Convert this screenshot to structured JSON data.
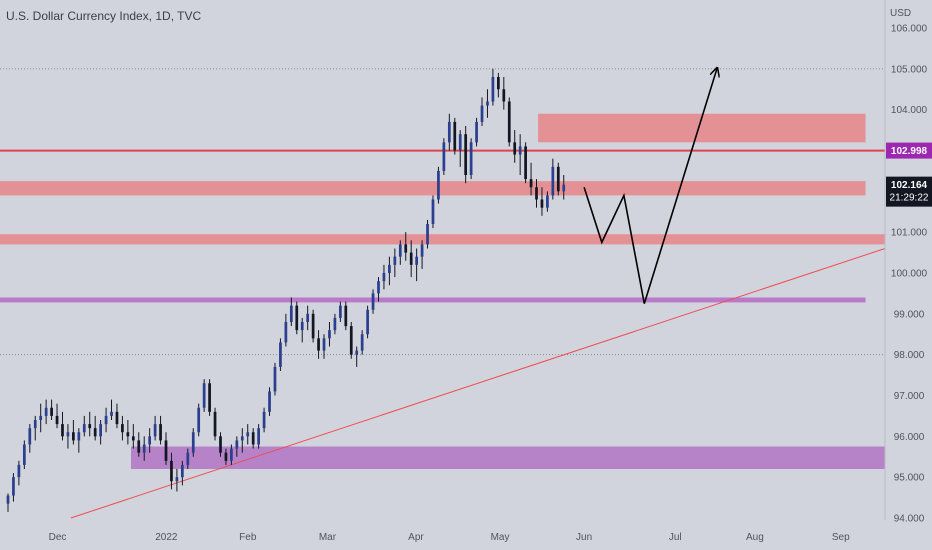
{
  "chart_data": {
    "type": "candlestick",
    "title": "U.S. Dollar Currency Index, 1D, TVC",
    "currency": "USD",
    "ylim": [
      94.0,
      106.0
    ],
    "y_ticks": [
      "94.000",
      "95.000",
      "96.000",
      "97.000",
      "98.000",
      "99.000",
      "100.000",
      "101.000",
      "102.000",
      "103.000",
      "104.000",
      "105.000",
      "106.000"
    ],
    "x_labels": [
      {
        "label": "Dec",
        "t": 0.065
      },
      {
        "label": "2022",
        "t": 0.188
      },
      {
        "label": "Feb",
        "t": 0.28
      },
      {
        "label": "Mar",
        "t": 0.37
      },
      {
        "label": "Apr",
        "t": 0.47
      },
      {
        "label": "May",
        "t": 0.565
      },
      {
        "label": "Jun",
        "t": 0.66
      },
      {
        "label": "Jul",
        "t": 0.763
      },
      {
        "label": "Aug",
        "t": 0.853
      },
      {
        "label": "Sep",
        "t": 0.95
      }
    ],
    "last_price": {
      "value": "102.164",
      "countdown": "21:29:22",
      "price": 102.164
    },
    "line_price": {
      "value": "102.998",
      "price": 102.998
    },
    "zones": [
      {
        "name": "zone-104",
        "low": 103.2,
        "high": 103.9,
        "t0": 0.608,
        "t1": 0.978,
        "color": "#e58a8e"
      },
      {
        "name": "zone-102",
        "low": 101.9,
        "high": 102.25,
        "t0": 0.0,
        "t1": 0.978,
        "color": "#e58a8e"
      },
      {
        "name": "zone-101",
        "low": 100.7,
        "high": 100.95,
        "t0": 0.0,
        "t1": 1.0,
        "color": "#e58a8e"
      },
      {
        "name": "zone-9935",
        "low": 99.28,
        "high": 99.4,
        "t0": 0.0,
        "t1": 0.978,
        "color": "#b76fc6"
      },
      {
        "name": "zone-955",
        "low": 95.2,
        "high": 95.75,
        "t0": 0.148,
        "t1": 1.0,
        "color": "#b27ac7"
      }
    ],
    "dotted_levels": [
      105.0,
      98.0
    ],
    "trendline": {
      "t0": 0.08,
      "p0": 94.0,
      "t1": 1.0,
      "p1": 100.6,
      "color": "#ef4c52"
    },
    "projection": [
      {
        "t": 0.66,
        "p": 102.1
      },
      {
        "t": 0.68,
        "p": 100.75
      },
      {
        "t": 0.705,
        "p": 101.9
      },
      {
        "t": 0.728,
        "p": 99.25
      },
      {
        "t": 0.81,
        "p": 105.0
      }
    ],
    "candles": [
      [
        94.35,
        94.6,
        94.15,
        94.55
      ],
      [
        94.55,
        95.1,
        94.4,
        95.0
      ],
      [
        95.0,
        95.4,
        94.8,
        95.3
      ],
      [
        95.3,
        95.9,
        95.2,
        95.8
      ],
      [
        95.8,
        96.3,
        95.6,
        96.2
      ],
      [
        96.2,
        96.5,
        95.9,
        96.4
      ],
      [
        96.4,
        96.8,
        96.1,
        96.5
      ],
      [
        96.5,
        96.9,
        96.3,
        96.7
      ],
      [
        96.7,
        96.9,
        96.4,
        96.5
      ],
      [
        96.5,
        96.8,
        96.2,
        96.3
      ],
      [
        96.3,
        96.6,
        95.9,
        96.0
      ],
      [
        96.0,
        96.3,
        95.7,
        96.1
      ],
      [
        96.1,
        96.4,
        95.8,
        95.9
      ],
      [
        95.9,
        96.2,
        95.6,
        96.1
      ],
      [
        96.1,
        96.5,
        96.0,
        96.3
      ],
      [
        96.3,
        96.6,
        96.0,
        96.2
      ],
      [
        96.2,
        96.5,
        95.9,
        96.0
      ],
      [
        96.0,
        96.4,
        95.8,
        96.3
      ],
      [
        96.3,
        96.7,
        96.1,
        96.5
      ],
      [
        96.5,
        96.9,
        96.4,
        96.6
      ],
      [
        96.6,
        96.8,
        96.2,
        96.3
      ],
      [
        96.3,
        96.5,
        95.9,
        96.1
      ],
      [
        96.1,
        96.4,
        95.8,
        96.0
      ],
      [
        96.0,
        96.3,
        95.7,
        95.9
      ],
      [
        95.9,
        96.1,
        95.5,
        95.6
      ],
      [
        95.6,
        96.0,
        95.4,
        95.8
      ],
      [
        95.8,
        96.2,
        95.6,
        96.0
      ],
      [
        96.0,
        96.5,
        95.9,
        96.3
      ],
      [
        96.3,
        96.5,
        95.8,
        95.9
      ],
      [
        95.9,
        96.1,
        95.3,
        95.4
      ],
      [
        95.4,
        95.6,
        94.7,
        94.9
      ],
      [
        94.9,
        95.2,
        94.65,
        95.0
      ],
      [
        95.0,
        95.4,
        94.8,
        95.3
      ],
      [
        95.3,
        95.7,
        95.2,
        95.6
      ],
      [
        95.6,
        96.2,
        95.5,
        96.1
      ],
      [
        96.1,
        96.8,
        96.0,
        96.7
      ],
      [
        96.7,
        97.4,
        96.6,
        97.3
      ],
      [
        97.3,
        97.4,
        96.5,
        96.6
      ],
      [
        96.6,
        96.7,
        95.9,
        96.0
      ],
      [
        96.0,
        96.1,
        95.5,
        95.6
      ],
      [
        95.6,
        95.7,
        95.3,
        95.4
      ],
      [
        95.4,
        95.8,
        95.3,
        95.7
      ],
      [
        95.7,
        96.0,
        95.5,
        95.9
      ],
      [
        95.9,
        96.2,
        95.6,
        96.0
      ],
      [
        96.0,
        96.3,
        95.8,
        96.1
      ],
      [
        96.1,
        96.2,
        95.7,
        95.8
      ],
      [
        95.8,
        96.3,
        95.7,
        96.2
      ],
      [
        96.2,
        96.7,
        96.1,
        96.6
      ],
      [
        96.6,
        97.2,
        96.5,
        97.1
      ],
      [
        97.1,
        97.8,
        97.0,
        97.7
      ],
      [
        97.7,
        98.4,
        97.6,
        98.3
      ],
      [
        98.3,
        99.0,
        98.2,
        98.8
      ],
      [
        98.8,
        99.4,
        98.7,
        99.2
      ],
      [
        99.2,
        99.3,
        98.5,
        98.6
      ],
      [
        98.6,
        98.9,
        98.3,
        98.8
      ],
      [
        98.8,
        99.2,
        98.6,
        99.0
      ],
      [
        99.0,
        99.1,
        98.3,
        98.4
      ],
      [
        98.4,
        98.6,
        97.9,
        98.1
      ],
      [
        98.1,
        98.5,
        97.9,
        98.4
      ],
      [
        98.4,
        98.8,
        98.2,
        98.6
      ],
      [
        98.6,
        99.0,
        98.5,
        98.9
      ],
      [
        98.9,
        99.3,
        98.8,
        99.2
      ],
      [
        99.2,
        99.3,
        98.6,
        98.7
      ],
      [
        98.7,
        98.8,
        97.9,
        98.0
      ],
      [
        98.0,
        98.2,
        97.7,
        98.1
      ],
      [
        98.1,
        98.6,
        98.0,
        98.5
      ],
      [
        98.5,
        99.2,
        98.4,
        99.1
      ],
      [
        99.1,
        99.6,
        99.0,
        99.5
      ],
      [
        99.5,
        99.9,
        99.3,
        99.8
      ],
      [
        99.8,
        100.2,
        99.6,
        100.0
      ],
      [
        100.0,
        100.4,
        99.7,
        100.2
      ],
      [
        100.2,
        100.6,
        99.9,
        100.4
      ],
      [
        100.4,
        100.8,
        100.2,
        100.7
      ],
      [
        100.7,
        101.0,
        100.3,
        100.5
      ],
      [
        100.5,
        100.8,
        99.9,
        100.2
      ],
      [
        100.2,
        100.6,
        99.8,
        100.4
      ],
      [
        100.4,
        100.8,
        100.1,
        100.7
      ],
      [
        100.7,
        101.3,
        100.6,
        101.2
      ],
      [
        101.2,
        101.9,
        101.1,
        101.8
      ],
      [
        101.8,
        102.6,
        101.7,
        102.5
      ],
      [
        102.5,
        103.3,
        102.4,
        103.2
      ],
      [
        103.2,
        103.9,
        103.0,
        103.7
      ],
      [
        103.7,
        103.8,
        102.9,
        103.0
      ],
      [
        103.0,
        103.5,
        102.6,
        103.4
      ],
      [
        103.4,
        103.6,
        102.2,
        102.4
      ],
      [
        102.4,
        103.3,
        102.3,
        103.2
      ],
      [
        103.2,
        103.8,
        103.1,
        103.7
      ],
      [
        103.7,
        104.3,
        103.6,
        104.1
      ],
      [
        104.1,
        104.5,
        103.8,
        104.2
      ],
      [
        104.2,
        105.0,
        104.1,
        104.8
      ],
      [
        104.8,
        104.9,
        104.3,
        104.5
      ],
      [
        104.5,
        104.8,
        104.0,
        104.2
      ],
      [
        104.2,
        104.3,
        103.1,
        103.2
      ],
      [
        103.2,
        103.5,
        102.7,
        102.9
      ],
      [
        102.9,
        103.4,
        102.4,
        103.1
      ],
      [
        103.1,
        103.2,
        102.2,
        102.3
      ],
      [
        102.3,
        102.7,
        101.9,
        102.1
      ],
      [
        102.1,
        102.3,
        101.6,
        101.8
      ],
      [
        101.8,
        102.1,
        101.4,
        101.6
      ],
      [
        101.6,
        102.0,
        101.5,
        101.9
      ],
      [
        101.9,
        102.8,
        101.8,
        102.6
      ],
      [
        102.6,
        102.7,
        101.9,
        102.0
      ],
      [
        102.0,
        102.4,
        101.8,
        102.164
      ]
    ]
  }
}
